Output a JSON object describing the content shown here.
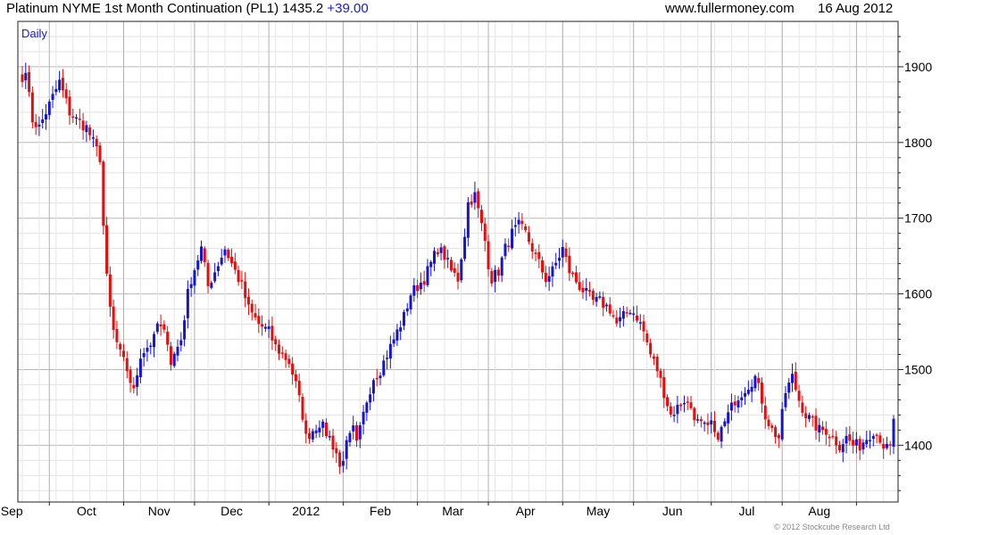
{
  "header": {
    "title": "Platinum NYME 1st Month Continuation (PL1) 1435.2",
    "change": "+39.00",
    "website": "www.fullermoney.com",
    "date": "16 Aug 2012"
  },
  "footer": {
    "copyright": "© 2012 Stockcube Research Ltd"
  },
  "chart_data": {
    "type": "candlestick",
    "period_label": "Daily",
    "y_ticks": [
      1400,
      1500,
      1600,
      1700,
      1800,
      1900
    ],
    "ylim": [
      1325,
      1960
    ],
    "x_ticks": [
      "Sep",
      "Oct",
      "Nov",
      "Dec",
      "2012",
      "Feb",
      "Mar",
      "Apr",
      "May",
      "Jun",
      "Jul",
      "Aug"
    ],
    "colors": {
      "up": "#1515d0",
      "down": "#e01010",
      "grid": "#dcdcdc"
    },
    "grid": true,
    "close_path": [
      [
        "2011-08-22",
        1880
      ],
      [
        "2011-08-23",
        1900
      ],
      [
        "2011-08-24",
        1860
      ],
      [
        "2011-08-25",
        1830
      ],
      [
        "2011-08-29",
        1820
      ],
      [
        "2011-09-01",
        1850
      ],
      [
        "2011-09-06",
        1880
      ],
      [
        "2011-09-09",
        1840
      ],
      [
        "2011-09-13",
        1830
      ],
      [
        "2011-09-16",
        1820
      ],
      [
        "2011-09-20",
        1800
      ],
      [
        "2011-09-22",
        1780
      ],
      [
        "2011-09-23",
        1690
      ],
      [
        "2011-09-26",
        1620
      ],
      [
        "2011-09-27",
        1580
      ],
      [
        "2011-09-28",
        1550
      ],
      [
        "2011-09-30",
        1520
      ],
      [
        "2011-10-04",
        1500
      ],
      [
        "2011-10-06",
        1470
      ],
      [
        "2011-10-10",
        1520
      ],
      [
        "2011-10-14",
        1540
      ],
      [
        "2011-10-17",
        1560
      ],
      [
        "2011-10-20",
        1540
      ],
      [
        "2011-10-21",
        1510
      ],
      [
        "2011-10-26",
        1540
      ],
      [
        "2011-10-28",
        1600
      ],
      [
        "2011-10-31",
        1620
      ],
      [
        "2011-11-03",
        1660
      ],
      [
        "2011-11-07",
        1610
      ],
      [
        "2011-11-10",
        1640
      ],
      [
        "2011-11-14",
        1660
      ],
      [
        "2011-11-17",
        1630
      ],
      [
        "2011-11-21",
        1610
      ],
      [
        "2011-11-23",
        1580
      ],
      [
        "2011-11-28",
        1560
      ],
      [
        "2011-12-01",
        1550
      ],
      [
        "2011-12-05",
        1530
      ],
      [
        "2011-12-09",
        1510
      ],
      [
        "2011-12-13",
        1480
      ],
      [
        "2011-12-15",
        1440
      ],
      [
        "2011-12-16",
        1410
      ],
      [
        "2011-12-20",
        1420
      ],
      [
        "2011-12-22",
        1430
      ],
      [
        "2011-12-27",
        1410
      ],
      [
        "2011-12-29",
        1390
      ],
      [
        "2011-12-30",
        1370
      ],
      [
        "2012-01-03",
        1400
      ],
      [
        "2012-01-05",
        1420
      ],
      [
        "2012-01-06",
        1400
      ],
      [
        "2012-01-09",
        1420
      ],
      [
        "2012-01-11",
        1460
      ],
      [
        "2012-01-13",
        1490
      ],
      [
        "2012-01-17",
        1500
      ],
      [
        "2012-01-19",
        1520
      ],
      [
        "2012-01-23",
        1540
      ],
      [
        "2012-01-26",
        1570
      ],
      [
        "2012-01-30",
        1600
      ],
      [
        "2012-02-01",
        1610
      ],
      [
        "2012-02-03",
        1620
      ],
      [
        "2012-02-06",
        1630
      ],
      [
        "2012-02-09",
        1660
      ],
      [
        "2012-02-13",
        1650
      ],
      [
        "2012-02-15",
        1630
      ],
      [
        "2012-02-17",
        1620
      ],
      [
        "2012-02-21",
        1680
      ],
      [
        "2012-02-22",
        1720
      ],
      [
        "2012-02-24",
        1730
      ],
      [
        "2012-02-27",
        1710
      ],
      [
        "2012-02-29",
        1670
      ],
      [
        "2012-03-01",
        1640
      ],
      [
        "2012-03-02",
        1620
      ],
      [
        "2012-03-06",
        1630
      ],
      [
        "2012-03-08",
        1660
      ],
      [
        "2012-03-12",
        1680
      ],
      [
        "2012-03-14",
        1690
      ],
      [
        "2012-03-16",
        1680
      ],
      [
        "2012-03-20",
        1660
      ],
      [
        "2012-03-22",
        1640
      ],
      [
        "2012-03-26",
        1620
      ],
      [
        "2012-03-28",
        1630
      ],
      [
        "2012-04-02",
        1660
      ],
      [
        "2012-04-04",
        1630
      ],
      [
        "2012-04-09",
        1610
      ],
      [
        "2012-04-11",
        1600
      ],
      [
        "2012-04-13",
        1590
      ],
      [
        "2012-04-17",
        1590
      ],
      [
        "2012-04-20",
        1580
      ],
      [
        "2012-04-24",
        1560
      ],
      [
        "2012-04-26",
        1570
      ],
      [
        "2012-04-30",
        1580
      ],
      [
        "2012-05-02",
        1570
      ],
      [
        "2012-05-04",
        1550
      ],
      [
        "2012-05-08",
        1520
      ],
      [
        "2012-05-10",
        1500
      ],
      [
        "2012-05-14",
        1470
      ],
      [
        "2012-05-16",
        1440
      ],
      [
        "2012-05-18",
        1450
      ],
      [
        "2012-05-22",
        1460
      ],
      [
        "2012-05-24",
        1450
      ],
      [
        "2012-05-28",
        1430
      ],
      [
        "2012-05-31",
        1420
      ],
      [
        "2012-06-01",
        1430
      ],
      [
        "2012-06-04",
        1410
      ],
      [
        "2012-06-06",
        1420
      ],
      [
        "2012-06-08",
        1440
      ],
      [
        "2012-06-12",
        1460
      ],
      [
        "2012-06-14",
        1470
      ],
      [
        "2012-06-18",
        1480
      ],
      [
        "2012-06-20",
        1490
      ],
      [
        "2012-06-22",
        1460
      ],
      [
        "2012-06-25",
        1440
      ],
      [
        "2012-06-27",
        1420
      ],
      [
        "2012-06-29",
        1410
      ],
      [
        "2012-07-02",
        1440
      ],
      [
        "2012-07-03",
        1470
      ],
      [
        "2012-07-05",
        1490
      ],
      [
        "2012-07-09",
        1460
      ],
      [
        "2012-07-11",
        1440
      ],
      [
        "2012-07-13",
        1430
      ],
      [
        "2012-07-17",
        1420
      ],
      [
        "2012-07-19",
        1420
      ],
      [
        "2012-07-23",
        1410
      ],
      [
        "2012-07-25",
        1400
      ],
      [
        "2012-07-27",
        1410
      ],
      [
        "2012-07-31",
        1400
      ],
      [
        "2012-08-02",
        1400
      ],
      [
        "2012-08-06",
        1410
      ],
      [
        "2012-08-08",
        1420
      ],
      [
        "2012-08-10",
        1410
      ],
      [
        "2012-08-13",
        1400
      ],
      [
        "2012-08-14",
        1395
      ],
      [
        "2012-08-15",
        1396
      ],
      [
        "2012-08-16",
        1435
      ]
    ]
  }
}
